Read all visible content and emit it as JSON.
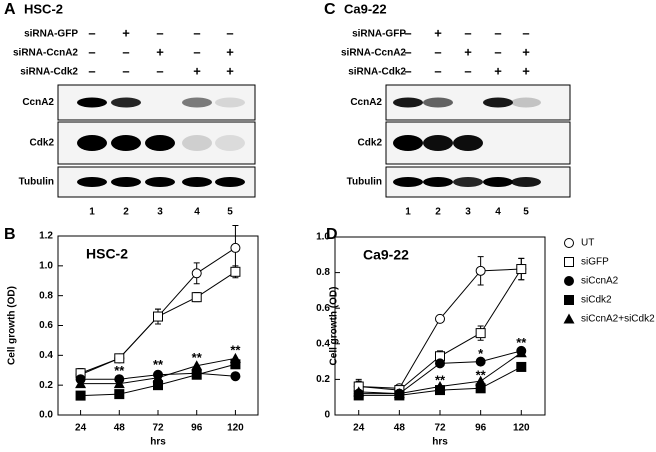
{
  "blots": [
    {
      "label": "A",
      "title": "HSC-2",
      "conditions": [
        {
          "name": "siRNA-GFP",
          "signs": [
            "–",
            "+",
            "–",
            "–",
            "–"
          ]
        },
        {
          "name": "siRNA-CcnA2",
          "signs": [
            "–",
            "–",
            "+",
            "–",
            "+"
          ]
        },
        {
          "name": "siRNA-Cdk2",
          "signs": [
            "–",
            "–",
            "–",
            "+",
            "+"
          ]
        }
      ],
      "proteins": [
        "CcnA2",
        "Cdk2",
        "Tubulin"
      ],
      "lanes": [
        "1",
        "2",
        "3",
        "4",
        "5"
      ]
    },
    {
      "label": "C",
      "title": "Ca9-22",
      "conditions": [
        {
          "name": "siRNA-GFP",
          "signs": [
            "–",
            "+",
            "–",
            "–",
            "–"
          ]
        },
        {
          "name": "siRNA-CcnA2",
          "signs": [
            "–",
            "–",
            "+",
            "–",
            "+"
          ]
        },
        {
          "name": "siRNA-Cdk2",
          "signs": [
            "–",
            "–",
            "–",
            "+",
            "+"
          ]
        }
      ],
      "proteins": [
        "CcnA2",
        "Cdk2",
        "Tubulin"
      ],
      "lanes": [
        "1",
        "2",
        "3",
        "4",
        "5"
      ]
    }
  ],
  "chart_data": [
    {
      "type": "line",
      "label": "B",
      "title": "HSC-2",
      "x_label": "hrs",
      "y_label": "Cell growth (OD)",
      "x": [
        24,
        48,
        72,
        96,
        120
      ],
      "xlim": [
        10,
        134
      ],
      "xticks": [
        24,
        48,
        72,
        96,
        120
      ],
      "ylim": [
        0,
        1.2
      ],
      "yticks": [
        {
          "value": 0,
          "label": "0.0"
        },
        0.2,
        0.4,
        0.6,
        0.8,
        {
          "value": 1,
          "label": "1.0"
        },
        1.2
      ],
      "legend": false,
      "series": [
        {
          "name": "UT",
          "color": "#000000",
          "marker": "circle-open",
          "values": [
            0.27,
            0.38,
            0.66,
            0.95,
            1.12
          ],
          "errors": [
            0.04,
            0.02,
            0.05,
            0.07,
            0.15
          ]
        },
        {
          "name": "siGFP",
          "color": "#000000",
          "marker": "square-open",
          "values": [
            0.28,
            0.38,
            0.66,
            0.79,
            0.96
          ],
          "errors": [
            0.03,
            0.02,
            0.05,
            0.03,
            0.04
          ]
        },
        {
          "name": "siCcnA2",
          "color": "#000000",
          "marker": "circle",
          "values": [
            0.24,
            0.24,
            0.27,
            0.28,
            0.26
          ]
        },
        {
          "name": "siCdk2",
          "color": "#000000",
          "marker": "square",
          "values": [
            0.13,
            0.14,
            0.2,
            0.27,
            0.34
          ]
        },
        {
          "name": "siCcnA2+siCdk2",
          "color": "#000000",
          "marker": "triangle",
          "values": [
            0.21,
            0.21,
            0.25,
            0.33,
            0.38
          ]
        }
      ],
      "annotations": [
        {
          "text": "**",
          "x": 48,
          "y": 0.29
        },
        {
          "text": "**",
          "x": 72,
          "y": 0.33
        },
        {
          "text": "**",
          "x": 96,
          "y": 0.38
        },
        {
          "text": "**",
          "x": 120,
          "y": 0.43
        }
      ]
    },
    {
      "type": "line",
      "label": "D",
      "title": "Ca9-22",
      "x_label": "hrs",
      "y_label": "Cell growth (OD)",
      "x": [
        24,
        48,
        72,
        96,
        120
      ],
      "xlim": [
        10,
        134
      ],
      "xticks": [
        24,
        48,
        72,
        96,
        120
      ],
      "ylim": [
        0,
        1
      ],
      "yticks": [
        0,
        0.2,
        0.4,
        0.6,
        0.8,
        {
          "value": 1,
          "label": "1.0"
        }
      ],
      "legend": "right",
      "series": [
        {
          "name": "UT",
          "color": "#000000",
          "marker": "circle-open",
          "values": [
            0.16,
            0.15,
            0.54,
            0.81,
            0.82
          ],
          "errors": [
            0.04,
            0.01,
            0.02,
            0.08,
            0.06
          ]
        },
        {
          "name": "siGFP",
          "color": "#000000",
          "marker": "square-open",
          "values": [
            0.16,
            0.14,
            0.33,
            0.46,
            0.82
          ],
          "errors": [
            0.03,
            0.01,
            0.03,
            0.04,
            0.06
          ]
        },
        {
          "name": "siCcnA2",
          "color": "#000000",
          "marker": "circle",
          "values": [
            0.12,
            0.12,
            0.29,
            0.3,
            0.36
          ]
        },
        {
          "name": "siCdk2",
          "color": "#000000",
          "marker": "square",
          "values": [
            0.11,
            0.11,
            0.14,
            0.15,
            0.27
          ]
        },
        {
          "name": "siCcnA2+siCdk2",
          "color": "#000000",
          "marker": "triangle",
          "values": [
            0.13,
            0.12,
            0.16,
            0.19,
            0.35
          ]
        }
      ],
      "annotations": [
        {
          "text": "**",
          "x": 72,
          "y": 0.19
        },
        {
          "text": "*",
          "x": 96,
          "y": 0.34
        },
        {
          "text": "**",
          "x": 96,
          "y": 0.22
        },
        {
          "text": "**",
          "x": 120,
          "y": 0.4
        }
      ]
    }
  ]
}
